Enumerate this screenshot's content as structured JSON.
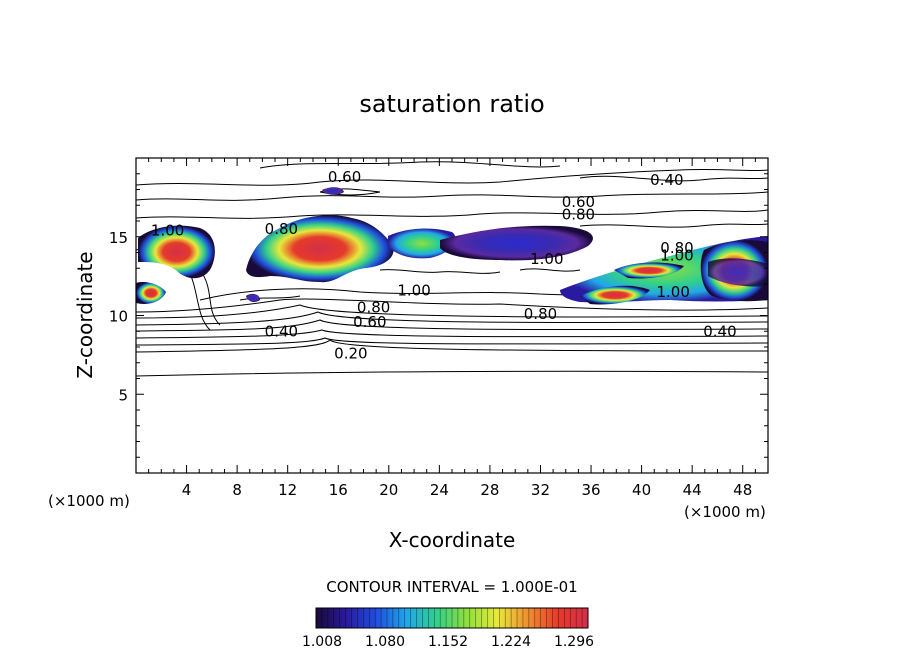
{
  "chart_data": {
    "type": "heatmap",
    "title": "saturation ratio",
    "xlabel": "X-coordinate",
    "ylabel": "Z-coordinate",
    "x_unit": "(×1000 m)",
    "y_unit": "(×1000 m)",
    "xlim": [
      0,
      50
    ],
    "ylim": [
      0,
      20
    ],
    "x_ticks": [
      4,
      8,
      12,
      16,
      20,
      24,
      28,
      32,
      36,
      40,
      44,
      48
    ],
    "y_ticks": [
      5,
      10,
      15
    ],
    "contour_interval_label": "CONTOUR INTERVAL = 1.000E-01",
    "colorbar": {
      "ticks": [
        "1.008",
        "1.080",
        "1.152",
        "1.224",
        "1.296"
      ],
      "colors": [
        "#1a0a3a",
        "#2a1aa0",
        "#1f4fe0",
        "#21a7e8",
        "#33d08a",
        "#8fe03b",
        "#e8e83a",
        "#f09030",
        "#e53a2a",
        "#d42f4a"
      ]
    },
    "contour_labels": [
      {
        "text": "0.60",
        "x": 16.5,
        "z": 18.8
      },
      {
        "text": "0.40",
        "x": 42.0,
        "z": 18.6
      },
      {
        "text": "0.60",
        "x": 35.0,
        "z": 17.2
      },
      {
        "text": "0.80",
        "x": 35.0,
        "z": 16.4
      },
      {
        "text": "1.00",
        "x": 2.5,
        "z": 15.4
      },
      {
        "text": "0.80",
        "x": 11.5,
        "z": 15.5
      },
      {
        "text": "1.00",
        "x": 32.5,
        "z": 13.6
      },
      {
        "text": "0.80",
        "x": 42.8,
        "z": 14.3
      },
      {
        "text": "1.00",
        "x": 42.8,
        "z": 13.8
      },
      {
        "text": "1.00",
        "x": 42.5,
        "z": 11.5
      },
      {
        "text": "1.00",
        "x": 22.0,
        "z": 11.6
      },
      {
        "text": "0.80",
        "x": 18.8,
        "z": 10.5
      },
      {
        "text": "0.60",
        "x": 18.5,
        "z": 9.6
      },
      {
        "text": "0.80",
        "x": 32.0,
        "z": 10.1
      },
      {
        "text": "0.40",
        "x": 11.5,
        "z": 9.0
      },
      {
        "text": "0.40",
        "x": 46.2,
        "z": 9.0
      },
      {
        "text": "0.20",
        "x": 17.0,
        "z": 7.6
      }
    ],
    "supersaturated_regions": [
      {
        "x": [
          0,
          6.5
        ],
        "z": [
          13,
          16.2
        ],
        "peak": 1.296
      },
      {
        "x": [
          0,
          3
        ],
        "z": [
          10.6,
          11.8
        ],
        "peak": 1.296
      },
      {
        "x": [
          9,
          19
        ],
        "z": [
          11.8,
          16
        ],
        "peak": 1.296
      },
      {
        "x": [
          19,
          26
        ],
        "z": [
          13.5,
          15.5
        ],
        "peak": 1.2
      },
      {
        "x": [
          26,
          36
        ],
        "z": [
          13.2,
          15.8
        ],
        "peak": 1.05
      },
      {
        "x": [
          34,
          50
        ],
        "z": [
          10.6,
          14.8
        ],
        "peak": 1.296
      }
    ]
  }
}
